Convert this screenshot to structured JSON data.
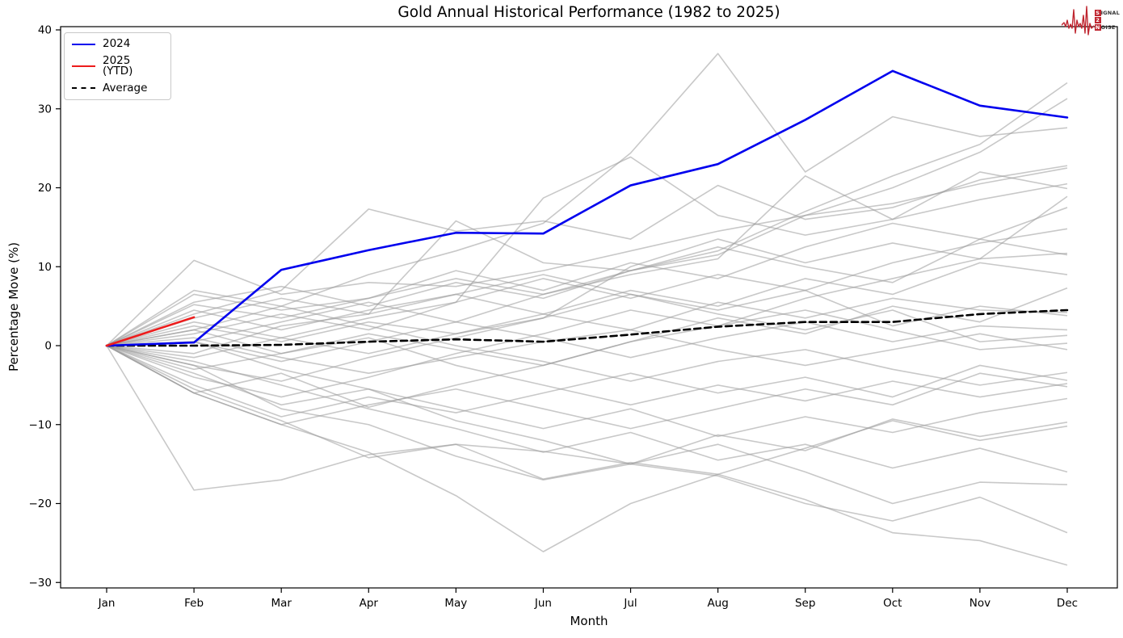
{
  "header": {
    "title": "Gold Annual Historical Performance (1982 to 2025)"
  },
  "logo": {
    "top_initial": "S",
    "top_rest": "IGNAL",
    "mid": "2",
    "bottom_initial": "N",
    "bottom_rest": "OISE",
    "color": "#bf2630"
  },
  "chart_data": {
    "type": "line",
    "title": "Gold Annual Historical Performance (1982 to 2025)",
    "xlabel": "Month",
    "ylabel": "Percentage Move (%)",
    "categories": [
      "Jan",
      "Feb",
      "Mar",
      "Apr",
      "May",
      "Jun",
      "Jul",
      "Aug",
      "Sep",
      "Oct",
      "Nov",
      "Dec"
    ],
    "y_tick_values": [
      40,
      30,
      20,
      10,
      0,
      -10,
      -20,
      -30
    ],
    "y_tick_labels": [
      "40",
      "30",
      "20",
      "10",
      "0",
      "−10",
      "−20",
      "−30"
    ],
    "ylim": [
      -30.7,
      40.4
    ],
    "grid": false,
    "legend": {
      "position": "upper left",
      "entries": [
        {
          "label": "2024",
          "color": "#0000ee",
          "style": "solid"
        },
        {
          "label": "2025 (YTD)",
          "color": "#ed1c1c",
          "style": "solid"
        },
        {
          "label": "Average",
          "color": "#000000",
          "style": "dashed"
        }
      ]
    },
    "series": [
      {
        "name": "2024",
        "color": "#0000ee",
        "width": 2.6,
        "dash": null,
        "values": [
          0,
          0.4,
          9.6,
          12.1,
          14.3,
          14.2,
          20.3,
          23.0,
          28.6,
          34.8,
          30.4,
          28.9
        ]
      },
      {
        "name": "2025 (YTD)",
        "color": "#ed1c1c",
        "width": 2.6,
        "dash": null,
        "values": [
          0,
          3.6
        ]
      },
      {
        "name": "Average",
        "color": "#000000",
        "width": 2.6,
        "dash": "8 5",
        "values": [
          0,
          0.0,
          0.1,
          0.5,
          0.8,
          0.5,
          1.4,
          2.4,
          3.0,
          3.0,
          4.0,
          4.5
        ]
      }
    ],
    "background_color": "#9a9a9a",
    "background_series": [
      [
        0,
        5.2,
        3.5,
        6.0,
        8.5,
        6.5,
        9.5,
        12.0,
        17.0,
        21.5,
        25.5,
        33.3
      ],
      [
        0,
        10.8,
        6.5,
        8.0,
        7.5,
        9.5,
        12.0,
        14.5,
        16.5,
        20.0,
        24.5,
        31.3
      ],
      [
        0,
        2.0,
        5.0,
        9.0,
        12.0,
        15.5,
        24.4,
        37.0,
        22.0,
        29.0,
        26.5,
        27.6
      ],
      [
        0,
        4.0,
        7.0,
        17.3,
        14.5,
        15.8,
        13.5,
        20.3,
        16.0,
        17.5,
        21.0,
        22.8
      ],
      [
        0,
        -1.0,
        2.5,
        4.0,
        15.8,
        10.5,
        9.5,
        11.5,
        16.5,
        18.0,
        20.5,
        22.5
      ],
      [
        0,
        0.5,
        -2.0,
        0.5,
        3.0,
        6.5,
        9.0,
        11.0,
        21.5,
        16.0,
        18.5,
        20.5
      ],
      [
        0,
        3.0,
        1.0,
        3.5,
        5.5,
        18.7,
        23.9,
        16.5,
        14.0,
        16.0,
        22.0,
        19.9
      ],
      [
        0,
        -2.5,
        -4.5,
        -1.5,
        1.0,
        3.5,
        10.0,
        13.5,
        10.5,
        13.0,
        11.0,
        18.9
      ],
      [
        0,
        6.5,
        4.5,
        6.0,
        9.5,
        7.0,
        10.5,
        8.5,
        12.5,
        15.5,
        13.5,
        17.5
      ],
      [
        0,
        1.5,
        4.0,
        2.0,
        5.5,
        8.5,
        6.0,
        9.0,
        7.0,
        10.5,
        13.0,
        14.8
      ],
      [
        0,
        -4.0,
        -6.5,
        -4.0,
        -1.0,
        1.5,
        4.5,
        2.5,
        6.0,
        8.5,
        11.0,
        11.7
      ],
      [
        0,
        5.5,
        7.5,
        5.0,
        8.0,
        6.0,
        9.5,
        12.5,
        10.0,
        8.0,
        13.5,
        11.5
      ],
      [
        0,
        2.5,
        0.5,
        3.0,
        1.5,
        4.0,
        7.0,
        5.0,
        8.5,
        6.5,
        10.5,
        9.0
      ],
      [
        0,
        -6.0,
        -3.5,
        -7.8,
        -5.0,
        -2.5,
        0.5,
        3.5,
        1.5,
        5.0,
        3.0,
        7.3
      ],
      [
        0,
        4.5,
        2.0,
        4.5,
        6.5,
        4.0,
        2.0,
        5.5,
        3.5,
        6.0,
        4.5,
        4.2
      ],
      [
        0,
        -1.5,
        1.0,
        -1.0,
        1.5,
        3.5,
        6.5,
        4.5,
        7.0,
        2.5,
        5.0,
        3.8
      ],
      [
        0,
        0.5,
        3.0,
        5.5,
        3.0,
        1.0,
        -1.5,
        1.0,
        3.0,
        0.5,
        2.5,
        2.0
      ],
      [
        0,
        3.5,
        6.0,
        4.0,
        6.5,
        9.0,
        6.5,
        4.0,
        2.0,
        4.5,
        0.5,
        1.3
      ],
      [
        0,
        -3.0,
        -1.0,
        1.5,
        -0.5,
        -2.5,
        0.5,
        2.5,
        4.5,
        2.0,
        -0.5,
        0.3
      ],
      [
        0,
        1.0,
        -1.5,
        -3.5,
        -1.5,
        0.5,
        2.0,
        -0.5,
        -2.5,
        -0.5,
        1.5,
        -0.5
      ],
      [
        0,
        7.0,
        5.0,
        2.5,
        0.0,
        -2.0,
        -4.5,
        -2.0,
        -0.5,
        -3.0,
        -5.0,
        -3.4
      ],
      [
        0,
        -5.0,
        -9.0,
        -6.5,
        -8.5,
        -6.0,
        -3.5,
        -6.0,
        -4.0,
        -6.5,
        -2.5,
        -4.4
      ],
      [
        0,
        2.0,
        -1.0,
        1.0,
        -2.5,
        -5.0,
        -7.5,
        -5.0,
        -7.0,
        -4.5,
        -6.5,
        -4.8
      ],
      [
        0,
        -6.0,
        -10.0,
        -7.5,
        -5.5,
        -8.0,
        -10.5,
        -8.0,
        -5.5,
        -7.5,
        -3.5,
        -5.2
      ],
      [
        0,
        0.5,
        -3.0,
        -5.5,
        -8.0,
        -10.5,
        -8.0,
        -11.5,
        -9.0,
        -11.0,
        -8.5,
        -6.7
      ],
      [
        0,
        -18.3,
        -17.0,
        -13.8,
        -12.5,
        -13.4,
        -15.0,
        -11.3,
        -13.3,
        -9.3,
        -11.5,
        -9.7
      ],
      [
        0,
        -6.0,
        -10.0,
        -13.5,
        -19.0,
        -26.1,
        -20.0,
        -16.3,
        -13.0,
        -9.5,
        -12.0,
        -10.2
      ],
      [
        0,
        -2.0,
        -5.0,
        -8.0,
        -10.5,
        -13.5,
        -11.0,
        -14.5,
        -12.5,
        -15.5,
        -13.0,
        -16.0
      ],
      [
        0,
        -3.5,
        -7.5,
        -5.5,
        -9.5,
        -12.0,
        -15.0,
        -12.5,
        -16.0,
        -20.0,
        -17.3,
        -17.6
      ],
      [
        0,
        -2.5,
        -8.0,
        -10.0,
        -14.0,
        -17.0,
        -15.0,
        -16.5,
        -20.0,
        -22.2,
        -19.2,
        -23.7
      ],
      [
        0,
        -5.5,
        -9.5,
        -14.2,
        -12.5,
        -16.9,
        -14.8,
        -16.3,
        -19.5,
        -23.7,
        -24.7,
        -27.8
      ]
    ]
  }
}
